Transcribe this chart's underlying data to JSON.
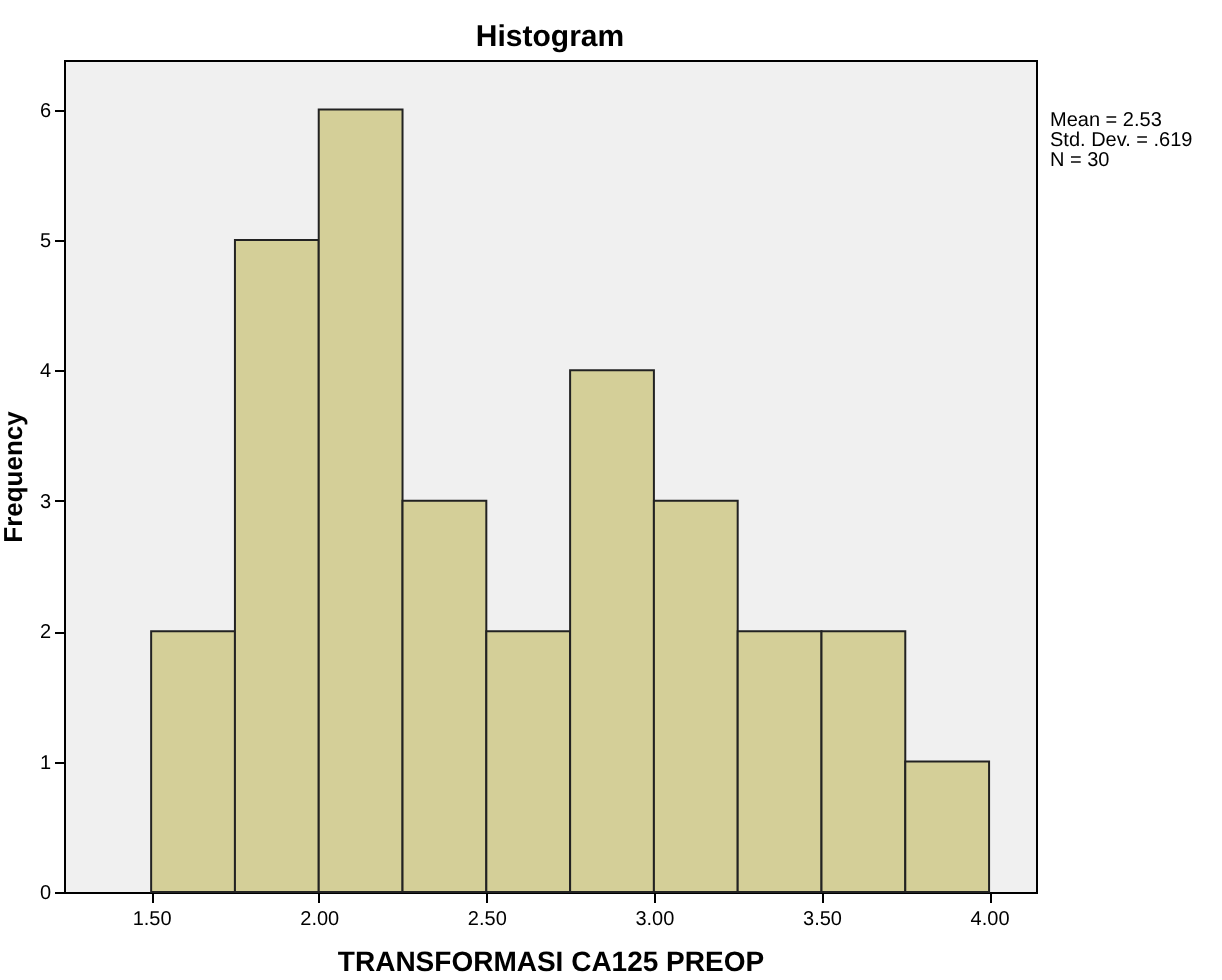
{
  "chart_data": {
    "type": "histogram",
    "title": "Histogram",
    "xlabel": "TRANSFORMASI  CA125  PREOP",
    "ylabel": "Frequency",
    "bins": [
      1.5,
      1.75,
      2.0,
      2.25,
      2.5,
      2.75,
      3.0,
      3.25,
      3.5,
      3.75,
      4.0
    ],
    "values": [
      2,
      5,
      6,
      3,
      2,
      4,
      3,
      2,
      2,
      1
    ],
    "color": "#d4cf98",
    "xlim": [
      1.24,
      4.14
    ],
    "xticks": [
      {
        "value": 1.5,
        "label": "1.50"
      },
      {
        "value": 2.0,
        "label": "2.00"
      },
      {
        "value": 2.5,
        "label": "2.50"
      },
      {
        "value": 3.0,
        "label": "3.00"
      },
      {
        "value": 3.5,
        "label": "3.50"
      },
      {
        "value": 4.0,
        "label": "4.00"
      }
    ],
    "ylim": [
      0,
      6.38
    ],
    "yticks": [
      0,
      1,
      2,
      3,
      4,
      5,
      6
    ],
    "annotations": [
      "Mean = 2.53",
      "Std. Dev. = .619",
      "N = 30"
    ]
  }
}
